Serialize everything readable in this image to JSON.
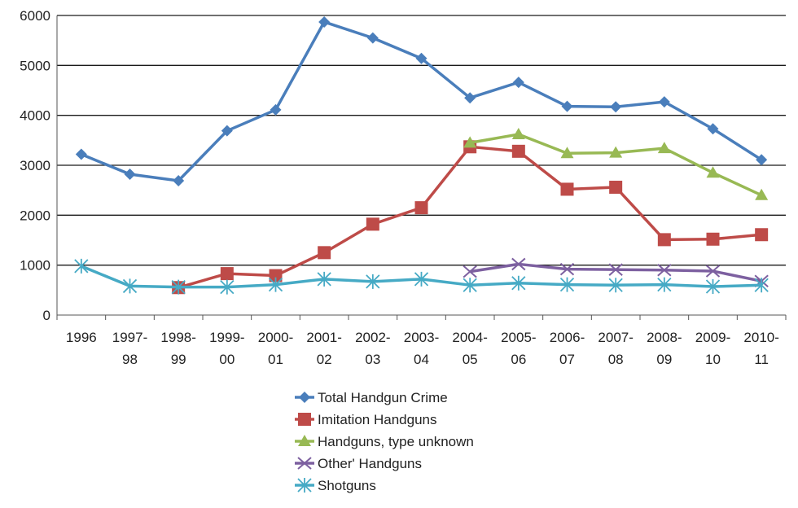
{
  "chart_data": {
    "type": "line",
    "title": "",
    "xlabel": "",
    "ylabel": "",
    "ylim": [
      0,
      6000
    ],
    "yticks": [
      0,
      1000,
      2000,
      3000,
      4000,
      5000,
      6000
    ],
    "grid": "horizontal",
    "legend_position": "bottom",
    "categories": [
      [
        "1996"
      ],
      [
        "1997-",
        "98"
      ],
      [
        "1998-",
        "99"
      ],
      [
        "1999-",
        "00"
      ],
      [
        "2000-",
        "01"
      ],
      [
        "2001-",
        "02"
      ],
      [
        "2002-",
        "03"
      ],
      [
        "2003-",
        "04"
      ],
      [
        "2004-",
        "05"
      ],
      [
        "2005-",
        "06"
      ],
      [
        "2006-",
        "07"
      ],
      [
        "2007-",
        "08"
      ],
      [
        "2008-",
        "09"
      ],
      [
        "2009-",
        "10"
      ],
      [
        "2010-",
        "11"
      ]
    ],
    "series": [
      {
        "name": "Total Handgun Crime",
        "color": "#4a7ebb",
        "marker": "diamond",
        "values": [
          3220,
          2820,
          2690,
          3690,
          4110,
          5870,
          5550,
          5140,
          4350,
          4660,
          4180,
          4170,
          4270,
          3730,
          3110
        ]
      },
      {
        "name": "Imitation Handguns",
        "color": "#be4b48",
        "marker": "square",
        "values": [
          null,
          null,
          550,
          830,
          790,
          1250,
          1820,
          2150,
          3370,
          3280,
          2520,
          2560,
          1510,
          1520,
          1610
        ]
      },
      {
        "name": "Handguns, type unknown",
        "color": "#98b954",
        "marker": "triangle",
        "values": [
          null,
          null,
          null,
          null,
          null,
          null,
          null,
          null,
          3450,
          3620,
          3240,
          3250,
          3340,
          2850,
          2400
        ]
      },
      {
        "name": "Other' Handguns",
        "color": "#7d60a0",
        "marker": "x",
        "values": [
          null,
          null,
          null,
          null,
          null,
          null,
          null,
          null,
          870,
          1020,
          920,
          910,
          900,
          880,
          680
        ]
      },
      {
        "name": "Shotguns",
        "color": "#46aac5",
        "marker": "star",
        "values": [
          980,
          580,
          560,
          560,
          610,
          720,
          670,
          720,
          600,
          640,
          610,
          600,
          610,
          570,
          600
        ]
      }
    ]
  }
}
